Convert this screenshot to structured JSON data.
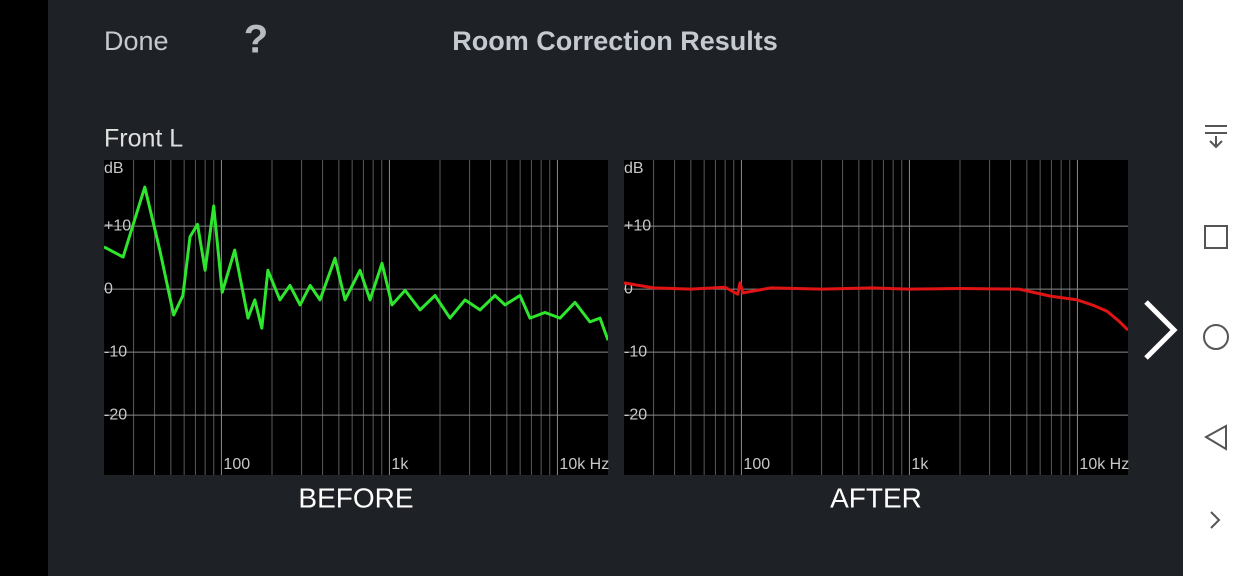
{
  "header": {
    "done": "Done",
    "help": "?",
    "title": "Room Correction Results"
  },
  "section": "Front L",
  "chart_data": [
    {
      "type": "line",
      "title": "BEFORE",
      "ylabel": "dB",
      "log_x": true,
      "grid": true,
      "xlim": [
        20,
        20000
      ],
      "ylim": [
        -29.5,
        20.5
      ],
      "xticks": [
        {
          "value": 100,
          "label": "100"
        },
        {
          "value": 1000,
          "label": "1k"
        },
        {
          "value": 10000,
          "label": "10k Hz"
        }
      ],
      "minor_xticks": [
        30,
        40,
        50,
        60,
        70,
        80,
        90,
        200,
        300,
        400,
        500,
        600,
        700,
        800,
        900,
        2000,
        3000,
        4000,
        5000,
        6000,
        7000,
        8000,
        9000
      ],
      "yticks": [
        {
          "value": 10,
          "label": "+10"
        },
        0,
        -10,
        -20
      ],
      "series": [
        {
          "name": "Before",
          "color": "#2ee62e",
          "x": [
            20,
            26,
            35,
            43,
            52,
            59,
            65,
            72,
            80,
            90,
            101,
            120,
            144,
            158,
            174,
            189,
            223,
            256,
            294,
            337,
            386,
            474,
            544,
            668,
            766,
            903,
            1036,
            1239,
            1520,
            1868,
            2294,
            2818,
            3460,
            4249,
            4875,
            5987,
            6868,
            8433,
            10354,
            12716,
            15614,
            17920,
            20000
          ],
          "values": [
            6.7,
            5.1,
            16.2,
            6.2,
            -4.1,
            -1.0,
            8.3,
            10.3,
            3.0,
            13.2,
            -0.5,
            6.2,
            -4.6,
            -1.7,
            -6.2,
            3.0,
            -1.7,
            0.6,
            -2.5,
            0.6,
            -1.7,
            4.9,
            -1.7,
            3.0,
            -1.7,
            4.1,
            -2.5,
            -0.2,
            -3.3,
            -1.0,
            -4.6,
            -1.7,
            -3.3,
            -1.0,
            -2.5,
            -1.0,
            -4.6,
            -3.7,
            -4.6,
            -2.1,
            -5.2,
            -4.6,
            -8.1
          ]
        }
      ]
    },
    {
      "type": "line",
      "title": "AFTER",
      "ylabel": "dB",
      "log_x": true,
      "grid": true,
      "xlim": [
        20,
        20000
      ],
      "ylim": [
        -29.5,
        20.5
      ],
      "xticks": [
        {
          "value": 100,
          "label": "100"
        },
        {
          "value": 1000,
          "label": "1k"
        },
        {
          "value": 10000,
          "label": "10k Hz"
        }
      ],
      "minor_xticks": [
        30,
        40,
        50,
        60,
        70,
        80,
        90,
        200,
        300,
        400,
        500,
        600,
        700,
        800,
        900,
        2000,
        3000,
        4000,
        5000,
        6000,
        7000,
        8000,
        9000
      ],
      "yticks": [
        {
          "value": 10,
          "label": "+10"
        },
        0,
        -10,
        -20
      ],
      "series": [
        {
          "name": "After",
          "color": "#e01414",
          "x": [
            20,
            30,
            50,
            80,
            95,
            98,
            102,
            150,
            300,
            600,
            1000,
            2000,
            4500,
            6900,
            10000,
            12500,
            15000,
            17500,
            20000
          ],
          "values": [
            1,
            0.2,
            0,
            0.3,
            -0.8,
            1,
            -0.6,
            0.2,
            0,
            0.2,
            0,
            0.1,
            0,
            -1.1,
            -1.7,
            -2.6,
            -3.5,
            -5,
            -6.5
          ]
        }
      ]
    }
  ]
}
